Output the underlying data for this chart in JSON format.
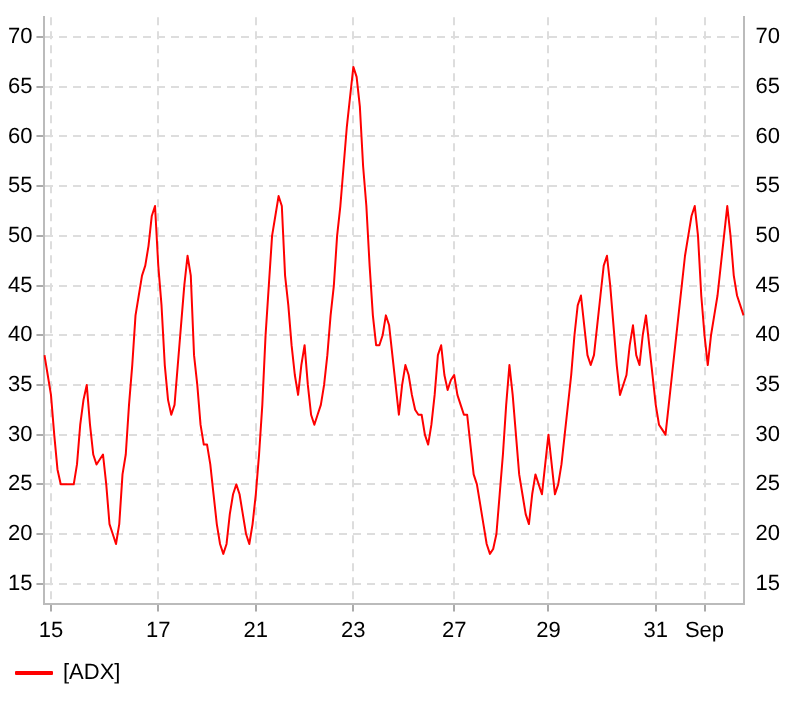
{
  "chart_data": {
    "type": "line",
    "categories": [
      null,
      null,
      "15",
      null,
      null,
      null,
      null,
      null,
      null,
      null,
      null,
      null,
      null,
      null,
      null,
      null,
      null,
      null,
      null,
      null,
      null,
      null,
      null,
      null,
      null,
      null,
      null,
      null,
      null,
      null,
      null,
      null,
      null,
      null,
      null,
      "17",
      null,
      null,
      null,
      null,
      null,
      null,
      null,
      null,
      null,
      null,
      null,
      null,
      null,
      null,
      null,
      null,
      null,
      null,
      null,
      null,
      null,
      null,
      null,
      null,
      null,
      null,
      null,
      null,
      null,
      "21",
      null,
      null,
      null,
      null,
      null,
      null,
      null,
      null,
      null,
      null,
      null,
      null,
      null,
      null,
      null,
      null,
      null,
      null,
      null,
      null,
      null,
      null,
      null,
      null,
      null,
      null,
      null,
      null,
      null,
      "23",
      null,
      null,
      null,
      null,
      null,
      null,
      null,
      null,
      null,
      null,
      null,
      null,
      null,
      null,
      null,
      null,
      null,
      null,
      null,
      null,
      null,
      null,
      null,
      null,
      null,
      null,
      null,
      null,
      null,
      null,
      "27",
      null,
      null,
      null,
      null,
      null,
      null,
      null,
      null,
      null,
      null,
      null,
      null,
      null,
      null,
      null,
      null,
      null,
      null,
      null,
      null,
      null,
      null,
      null,
      null,
      null,
      null,
      null,
      null,
      "29",
      null,
      null,
      null,
      null,
      null,
      null,
      null,
      null,
      null,
      null,
      null,
      null,
      null,
      null,
      null,
      null,
      null,
      null,
      null,
      null,
      null,
      null,
      null,
      null,
      null,
      null,
      null,
      null,
      null,
      null,
      null,
      null,
      "31",
      null,
      null,
      null,
      null,
      null,
      null,
      null,
      null,
      null,
      null,
      null,
      null,
      null,
      null,
      "Sep",
      null,
      null,
      null,
      null,
      null,
      null,
      null,
      null,
      null,
      null,
      null,
      null
    ],
    "ylim": [
      13,
      72
    ],
    "yticks": [
      15,
      20,
      25,
      30,
      35,
      40,
      45,
      50,
      55,
      60,
      65,
      70
    ],
    "y2lim": [
      13,
      72
    ],
    "y2ticks": [
      15,
      20,
      25,
      30,
      35,
      40,
      45,
      50,
      55,
      60,
      65,
      70
    ],
    "grid": true,
    "legend": "bottom left",
    "marker": "none",
    "line_style": "solid",
    "series": [
      {
        "name": "[ADX]",
        "color": "#ff0000",
        "values": [
          38,
          36,
          34,
          30,
          26.5,
          25,
          25,
          25,
          25,
          25,
          27,
          31,
          33.5,
          35,
          31,
          28,
          27,
          27.5,
          28,
          25,
          21,
          20,
          19,
          21,
          26,
          28,
          33,
          37,
          42,
          44,
          46,
          47,
          49,
          52,
          53,
          47,
          43,
          37,
          33.5,
          32,
          33,
          37,
          41,
          45,
          48,
          46,
          38,
          35,
          31,
          29,
          29,
          27,
          24,
          21,
          19,
          18,
          19,
          22,
          24,
          25,
          24,
          22,
          20,
          19,
          21,
          24,
          28,
          33,
          40,
          45,
          50,
          52,
          54,
          53,
          46,
          43,
          39,
          36,
          34,
          37,
          39,
          35,
          32,
          31,
          32,
          33,
          35,
          38,
          42,
          45,
          50,
          53,
          57,
          61,
          64,
          67,
          66,
          63,
          57,
          53,
          47,
          42,
          39,
          39,
          40,
          42,
          41,
          38,
          35,
          32,
          35,
          37,
          36,
          34,
          32.5,
          32,
          32,
          30,
          29,
          31,
          34,
          38,
          39,
          36,
          34.5,
          35.5,
          36,
          34,
          33,
          32,
          32,
          29,
          26,
          25,
          23,
          21,
          19,
          18,
          18.5,
          20,
          24,
          28,
          33,
          37,
          34,
          30,
          26,
          24,
          22,
          21,
          24,
          26,
          25,
          24,
          27,
          30,
          27,
          24,
          25,
          27,
          30,
          33,
          36,
          40,
          43,
          44,
          41,
          38,
          37,
          38,
          41,
          44,
          47,
          48,
          45,
          41,
          37,
          34,
          35,
          36,
          39,
          41,
          38,
          37,
          40,
          42,
          39,
          36,
          33,
          31,
          30.5,
          30,
          33,
          36,
          39,
          42,
          45,
          48,
          50,
          52,
          53,
          50,
          44,
          40,
          37,
          40,
          42,
          44,
          47,
          50,
          53,
          50,
          46,
          44,
          43,
          42
        ]
      }
    ]
  }
}
